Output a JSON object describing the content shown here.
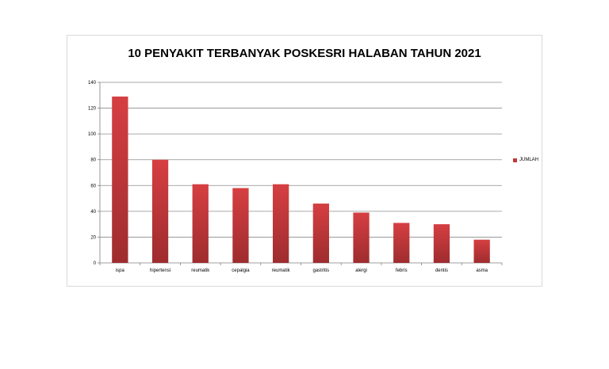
{
  "chart_data": {
    "type": "bar",
    "title": "10 PENYAKIT TERBANYAK POSKESRI HALABAN TAHUN 2021",
    "categories": [
      "ispa",
      "hipertensi",
      "reumatik",
      "cepalgia",
      "reumatik",
      "gastritis",
      "alergi",
      "febris",
      "dentis",
      "asma"
    ],
    "series": [
      {
        "name": "JUMLAH",
        "values": [
          129,
          80,
          61,
          58,
          61,
          46,
          39,
          31,
          30,
          18
        ],
        "color": "#c0393b"
      }
    ],
    "ylim": [
      0,
      140
    ],
    "yticks": [
      0,
      20,
      40,
      60,
      80,
      100,
      120,
      140
    ],
    "grid": true,
    "legend_position": "right",
    "xlabel": "",
    "ylabel": ""
  }
}
